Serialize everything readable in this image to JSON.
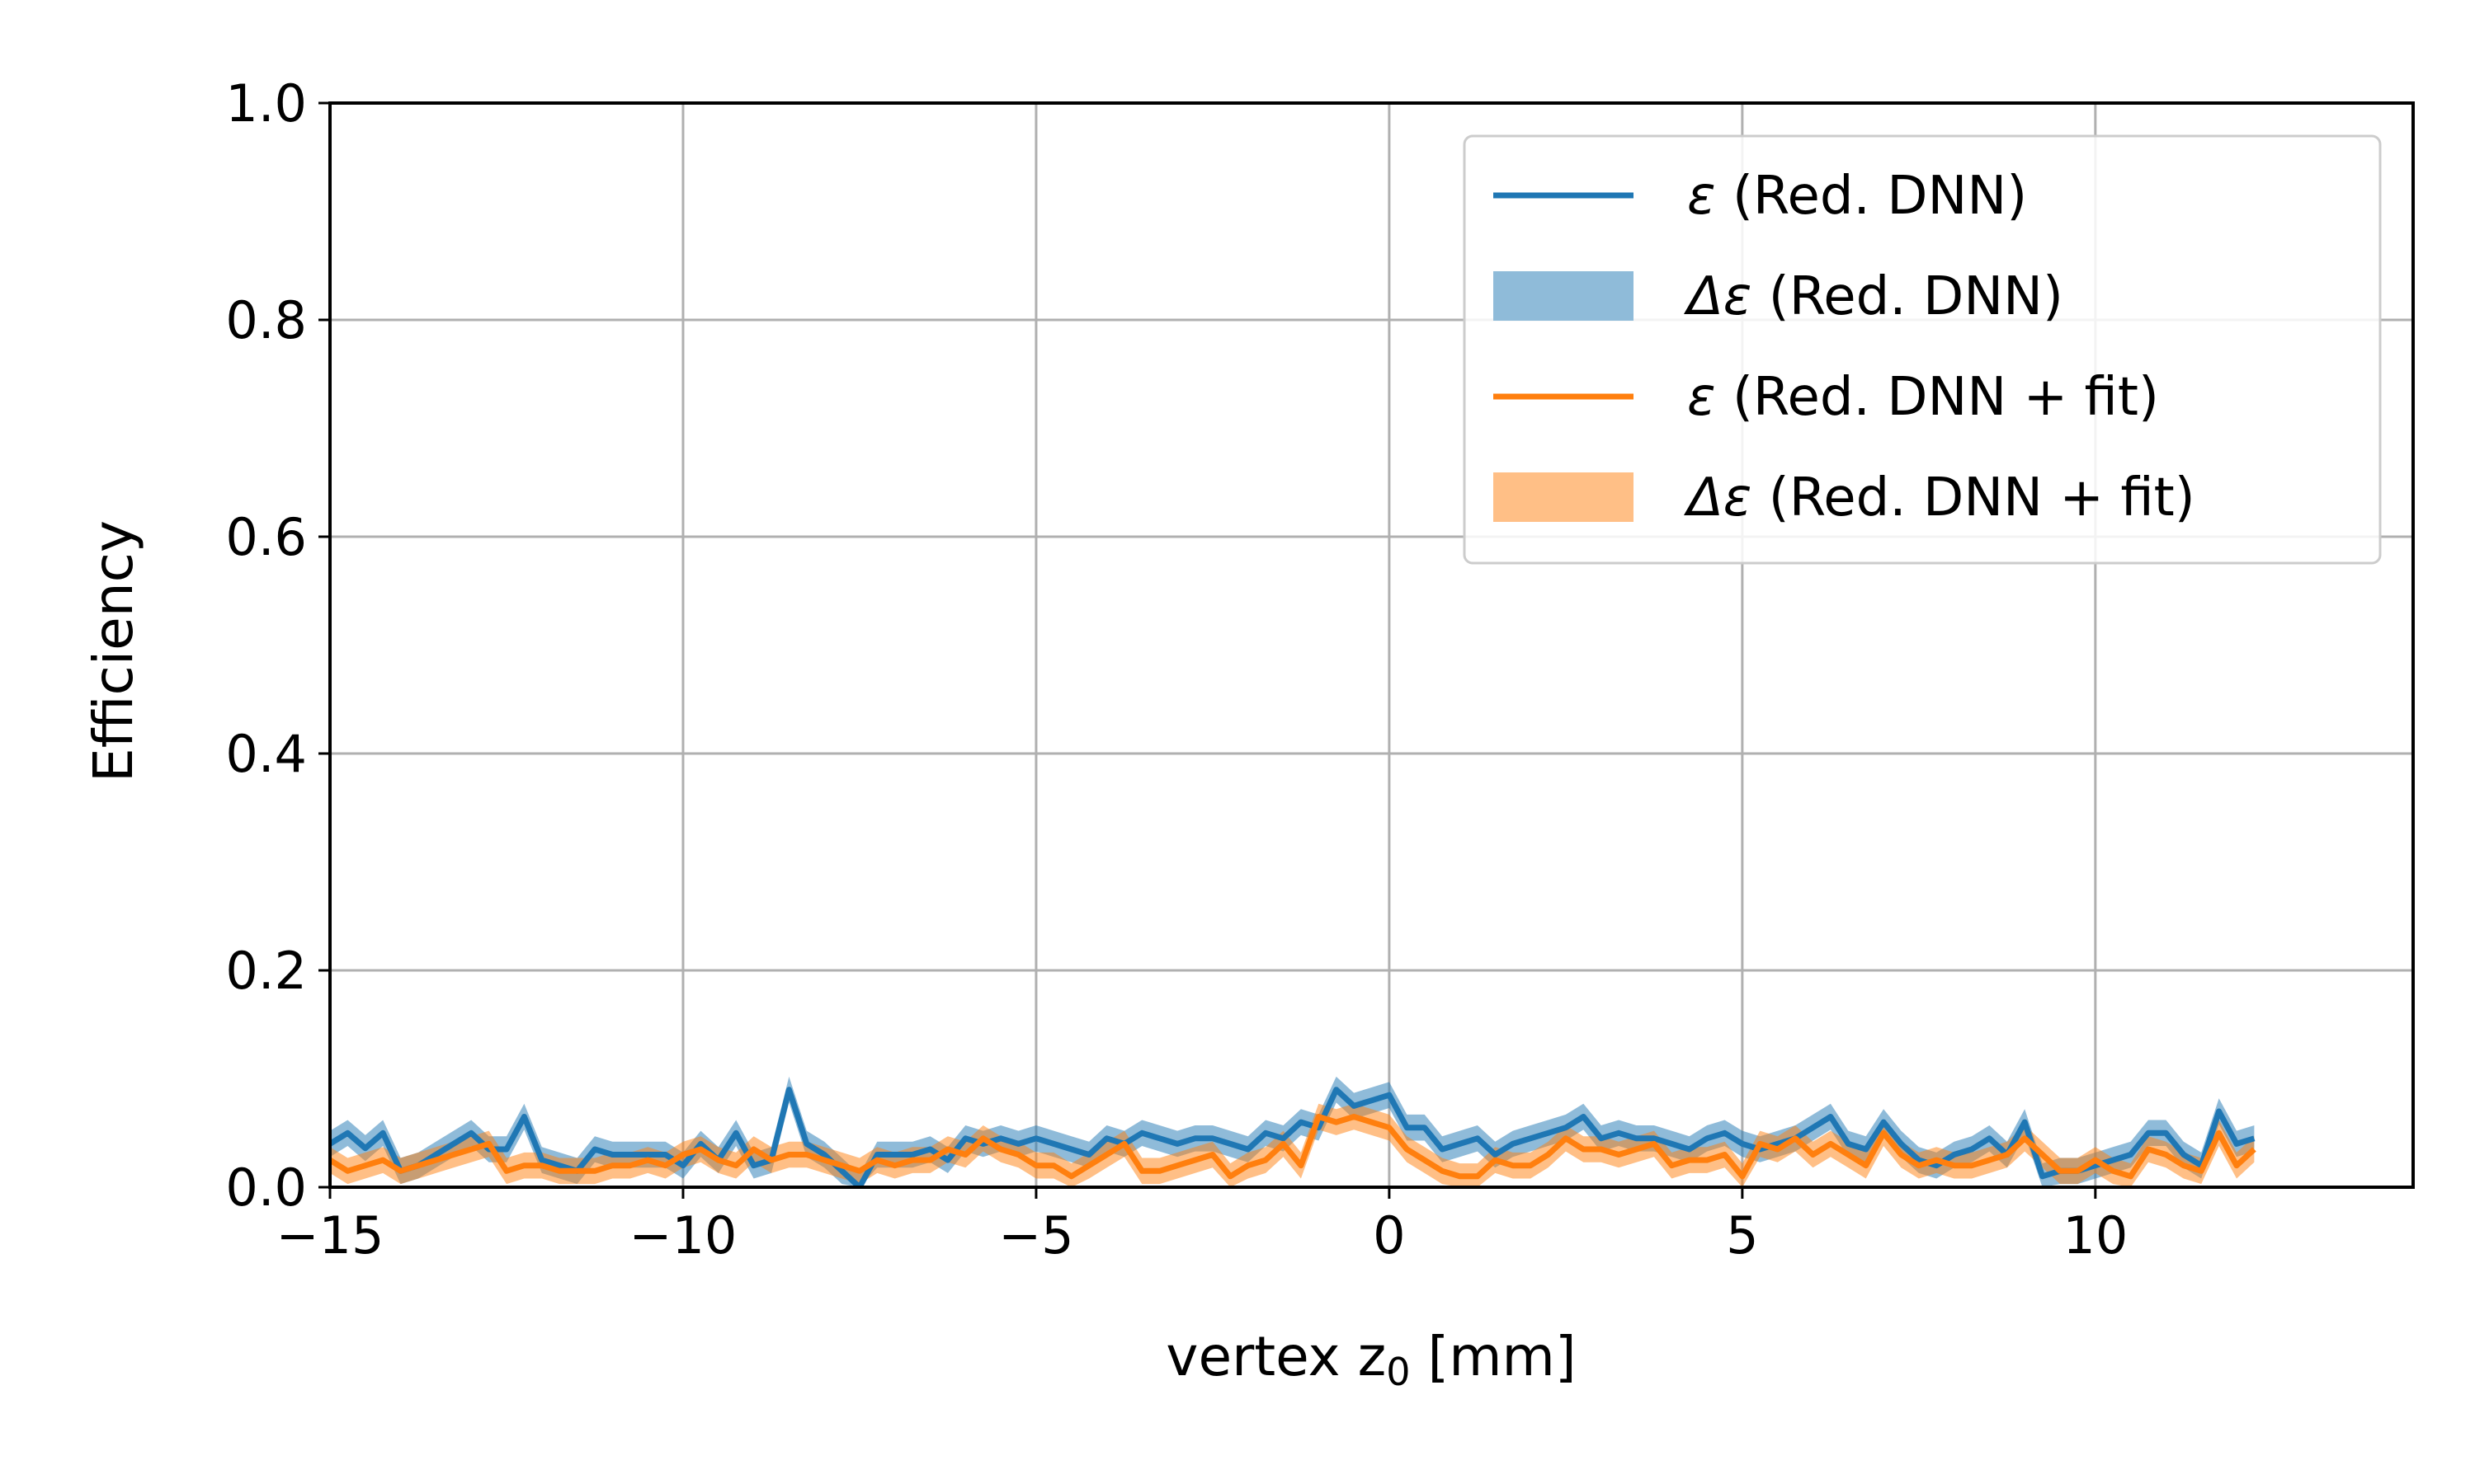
{
  "chart_data": {
    "type": "line",
    "title": "",
    "xlabel": "vertex z",
    "xlabel_subscript": "0",
    "xlabel_unit": " [mm]",
    "ylabel": "Efficiency",
    "xlim": [
      -15,
      14.5
    ],
    "ylim": [
      0.0,
      1.0
    ],
    "xticks": [
      -15,
      -10,
      -5,
      0,
      5,
      10
    ],
    "xtick_labels": [
      "−15",
      "−10",
      "−5",
      "0",
      "5",
      "10"
    ],
    "yticks": [
      0.0,
      0.2,
      0.4,
      0.6,
      0.8,
      1.0
    ],
    "ytick_labels": [
      "0.0",
      "0.2",
      "0.4",
      "0.6",
      "0.8",
      "1.0"
    ],
    "grid": true,
    "legend_position": "top-right",
    "legend": [
      {
        "symbol": "ε",
        "text": " (Red. DNN)",
        "kind": "line",
        "color": "#1f77b4"
      },
      {
        "symbol": "Δε",
        "text": " (Red. DNN)",
        "kind": "band",
        "color": "#8fbbd9"
      },
      {
        "symbol": "ε",
        "text": " (Red. DNN + fit)",
        "kind": "line",
        "color": "#ff7f0e"
      },
      {
        "symbol": "Δε",
        "text": " (Red. DNN + fit)",
        "kind": "band",
        "color": "#ffbf86"
      }
    ],
    "x_start": -15.0,
    "x_step": 0.25,
    "series": [
      {
        "name": "ε (Red. DNN)",
        "color": "#1f77b4",
        "band_color": "#1f77b4",
        "band_opacity": 0.5,
        "band_halfwidth": 0.012,
        "values": [
          0.04,
          0.05,
          0.036,
          0.05,
          0.015,
          0.02,
          0.03,
          0.04,
          0.05,
          0.035,
          0.035,
          0.065,
          0.025,
          0.02,
          0.015,
          0.035,
          0.03,
          0.03,
          0.03,
          0.03,
          0.02,
          0.04,
          0.025,
          0.05,
          0.02,
          0.025,
          0.09,
          0.04,
          0.03,
          0.015,
          0.0,
          0.03,
          0.03,
          0.03,
          0.035,
          0.025,
          0.045,
          0.04,
          0.045,
          0.04,
          0.045,
          0.04,
          0.035,
          0.03,
          0.045,
          0.04,
          0.05,
          0.045,
          0.04,
          0.045,
          0.045,
          0.04,
          0.035,
          0.05,
          0.045,
          0.06,
          0.055,
          0.09,
          0.075,
          0.08,
          0.085,
          0.055,
          0.055,
          0.035,
          0.04,
          0.045,
          0.03,
          0.04,
          0.045,
          0.05,
          0.055,
          0.065,
          0.045,
          0.05,
          0.045,
          0.045,
          0.04,
          0.035,
          0.045,
          0.05,
          0.04,
          0.035,
          0.04,
          0.045,
          0.055,
          0.065,
          0.04,
          0.035,
          0.06,
          0.04,
          0.025,
          0.02,
          0.03,
          0.035,
          0.045,
          0.03,
          0.06,
          0.01,
          0.015,
          0.015,
          0.02,
          0.025,
          0.03,
          0.05,
          0.05,
          0.03,
          0.02,
          0.07,
          0.04,
          0.045
        ]
      },
      {
        "name": "ε (Red. DNN + fit)",
        "color": "#ff7f0e",
        "band_color": "#ff7f0e",
        "band_opacity": 0.5,
        "band_halfwidth": 0.012,
        "values": [
          0.025,
          0.015,
          0.02,
          0.025,
          0.015,
          0.02,
          0.025,
          0.03,
          0.035,
          0.04,
          0.015,
          0.02,
          0.02,
          0.015,
          0.015,
          0.015,
          0.02,
          0.02,
          0.025,
          0.02,
          0.03,
          0.035,
          0.025,
          0.02,
          0.035,
          0.025,
          0.03,
          0.03,
          0.025,
          0.02,
          0.015,
          0.025,
          0.02,
          0.025,
          0.025,
          0.035,
          0.03,
          0.045,
          0.035,
          0.03,
          0.02,
          0.02,
          0.01,
          0.02,
          0.03,
          0.04,
          0.015,
          0.015,
          0.02,
          0.025,
          0.03,
          0.01,
          0.02,
          0.025,
          0.04,
          0.02,
          0.065,
          0.06,
          0.065,
          0.06,
          0.055,
          0.035,
          0.025,
          0.015,
          0.01,
          0.01,
          0.025,
          0.02,
          0.02,
          0.03,
          0.045,
          0.035,
          0.035,
          0.03,
          0.035,
          0.04,
          0.02,
          0.025,
          0.025,
          0.03,
          0.01,
          0.04,
          0.035,
          0.045,
          0.03,
          0.04,
          0.03,
          0.02,
          0.05,
          0.03,
          0.02,
          0.025,
          0.02,
          0.02,
          0.025,
          0.03,
          0.045,
          0.03,
          0.015,
          0.015,
          0.025,
          0.015,
          0.01,
          0.035,
          0.03,
          0.02,
          0.015,
          0.05,
          0.02,
          0.035
        ]
      }
    ]
  }
}
